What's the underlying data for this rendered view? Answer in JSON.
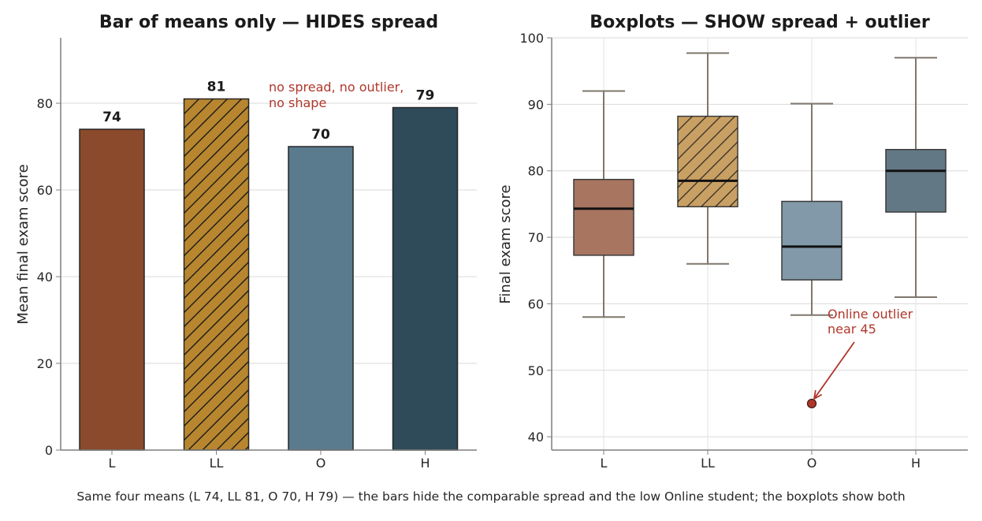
{
  "chart_data": [
    {
      "type": "bar",
      "title": "Bar of means only — HIDES spread",
      "categories": [
        "L",
        "LL",
        "O",
        "H"
      ],
      "values": [
        74,
        81,
        70,
        79
      ],
      "data_labels": [
        "74",
        "81",
        "70",
        "79"
      ],
      "ylabel": "Mean final exam score",
      "xlabel": "",
      "ylim": [
        0,
        95
      ],
      "yticks": [
        0,
        20,
        40,
        60,
        80
      ],
      "grid": "horizontal",
      "colors": [
        "#8b4a2b",
        "#b8862f",
        "#5a7a8e",
        "#2f4b5a"
      ],
      "hatched": [
        "LL"
      ],
      "annotation": {
        "lines": [
          "no spread, no outlier,",
          "no shape"
        ],
        "color": "#b0362a"
      }
    },
    {
      "type": "box",
      "title": "Boxplots — SHOW spread + outlier",
      "categories": [
        "L",
        "LL",
        "O",
        "H"
      ],
      "boxes": [
        {
          "category": "L",
          "whisker_low": 58,
          "q1": 67.3,
          "median": 74.3,
          "q3": 78.7,
          "whisker_high": 92
        },
        {
          "category": "LL",
          "whisker_low": 66,
          "q1": 74.6,
          "median": 78.5,
          "q3": 88.2,
          "whisker_high": 97.7
        },
        {
          "category": "O",
          "whisker_low": 58.3,
          "q1": 63.6,
          "median": 68.6,
          "q3": 75.4,
          "whisker_high": 90.1
        },
        {
          "category": "H",
          "whisker_low": 61,
          "q1": 73.8,
          "median": 80,
          "q3": 83.2,
          "whisker_high": 97
        }
      ],
      "outliers": [
        {
          "category": "O",
          "value": 45
        }
      ],
      "ylabel": "Final exam score",
      "xlabel": "",
      "ylim": [
        38,
        100
      ],
      "yticks": [
        40,
        50,
        60,
        70,
        80,
        90,
        100
      ],
      "grid": "both",
      "colors": [
        "#a87560",
        "#c9a063",
        "#8199a8",
        "#637885"
      ],
      "hatched": [
        "LL"
      ],
      "annotation": {
        "lines": [
          "Online outlier",
          "near 45"
        ],
        "color": "#b0362a"
      }
    }
  ],
  "caption": "Same four means (L 74, LL 81, O 70, H 79) — the bars hide the comparable spread and the low Online student; the boxplots show both"
}
